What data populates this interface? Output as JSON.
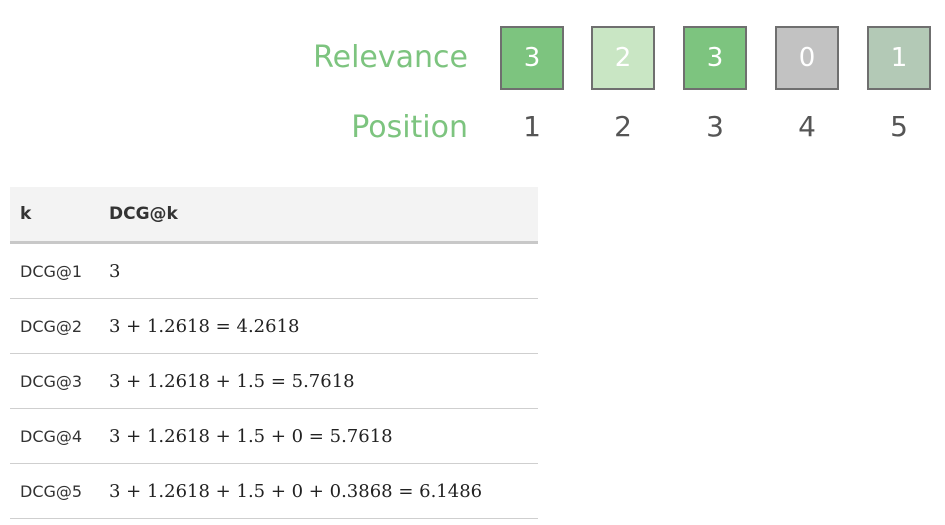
{
  "labels": {
    "relevance": "Relevance",
    "position": "Position"
  },
  "relevance_boxes": [
    {
      "value": "3",
      "color": "#7dc47f"
    },
    {
      "value": "2",
      "color": "#c9e6c4"
    },
    {
      "value": "3",
      "color": "#7dc47f"
    },
    {
      "value": "0",
      "color": "#c2c2c2"
    },
    {
      "value": "1",
      "color": "#b3c9b6"
    }
  ],
  "positions": [
    "1",
    "2",
    "3",
    "4",
    "5"
  ],
  "table": {
    "headers": [
      "k",
      "DCG@k"
    ],
    "rows": [
      {
        "k": "DCG@1",
        "formula": "3"
      },
      {
        "k": "DCG@2",
        "formula": "3 + 1.2618 = 4.2618"
      },
      {
        "k": "DCG@3",
        "formula": "3 + 1.2618 + 1.5 = 5.7618"
      },
      {
        "k": "DCG@4",
        "formula": "3 + 1.2618 + 1.5 + 0 = 5.7618"
      },
      {
        "k": "DCG@5",
        "formula": "3 + 1.2618 + 1.5 + 0 + 0.3868 = 6.1486"
      }
    ]
  }
}
